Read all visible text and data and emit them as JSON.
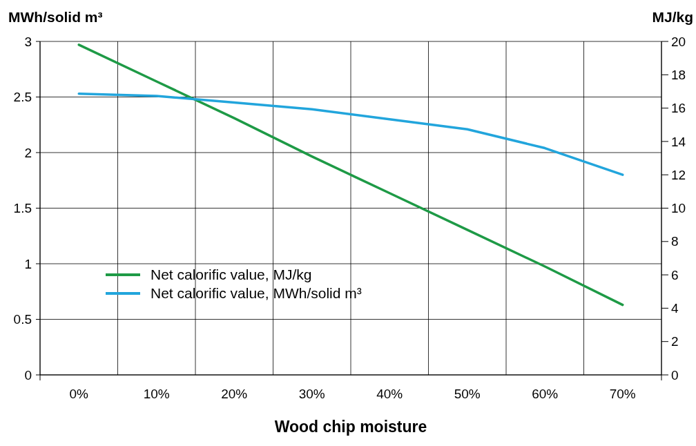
{
  "chart_data": {
    "type": "line",
    "xlabel": "Wood chip moisture",
    "ylabel": "MWh/solid m³",
    "y2label": "MJ/kg",
    "categories": [
      "0%",
      "10%",
      "20%",
      "30%",
      "40%",
      "50%",
      "60%",
      "70%"
    ],
    "series": [
      {
        "name": "Net calorific value, MJ/kg",
        "color": "#1e9a46",
        "axis": "y2",
        "values": [
          19.8,
          17.6,
          15.4,
          13.1,
          10.9,
          8.7,
          6.5,
          4.2
        ]
      },
      {
        "name": "Net calorific value, MWh/solid m³",
        "color": "#22a5dc",
        "values": [
          2.53,
          2.51,
          2.45,
          2.39,
          2.3,
          2.21,
          2.04,
          1.8
        ]
      }
    ],
    "ylim": [
      0,
      3
    ],
    "yticks": [
      0,
      0.5,
      1,
      1.5,
      2,
      2.5,
      3
    ],
    "y2lim": [
      0,
      20
    ],
    "y2ticks": [
      0,
      2,
      4,
      6,
      8,
      10,
      12,
      14,
      16,
      18,
      20
    ],
    "grid": true,
    "legend": "bottom left",
    "line_style": "solid",
    "marker": "none"
  }
}
